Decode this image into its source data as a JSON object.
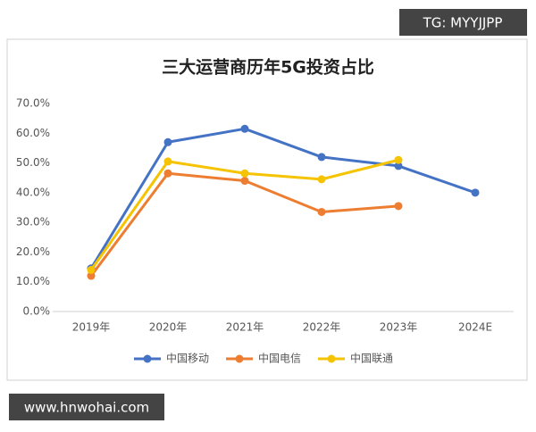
{
  "chart_data": {
    "type": "line",
    "title": "三大运营商历年5G投资占比",
    "categories": [
      "2019年",
      "2020年",
      "2021年",
      "2022年",
      "2023年",
      "2024E"
    ],
    "series": [
      {
        "name": "中国移动",
        "color": "#4472c4",
        "values": [
          14.5,
          57,
          61.5,
          52,
          49,
          40
        ]
      },
      {
        "name": "中国电信",
        "color": "#ed7d31",
        "values": [
          12,
          46.5,
          44,
          33.5,
          35.5,
          null
        ]
      },
      {
        "name": "中国联通",
        "color": "#f5c300",
        "values": [
          14,
          50.5,
          46.5,
          44.5,
          51,
          null
        ]
      }
    ],
    "ylim": [
      0,
      70
    ],
    "yticks": [
      {
        "value": 0,
        "label": "0.0%"
      },
      {
        "value": 10,
        "label": "10.0%"
      },
      {
        "value": 20,
        "label": "20.0%"
      },
      {
        "value": 30,
        "label": "30.0%"
      },
      {
        "value": 40,
        "label": "40.0%"
      },
      {
        "value": 50,
        "label": "50.0%"
      },
      {
        "value": 60,
        "label": "60.0%"
      },
      {
        "value": 70,
        "label": "70.0%"
      }
    ],
    "grid": false,
    "legend": "bottom"
  },
  "watermarks": {
    "top": "TG: MYYJJPP",
    "bottom": "www.hnwohai.com"
  }
}
